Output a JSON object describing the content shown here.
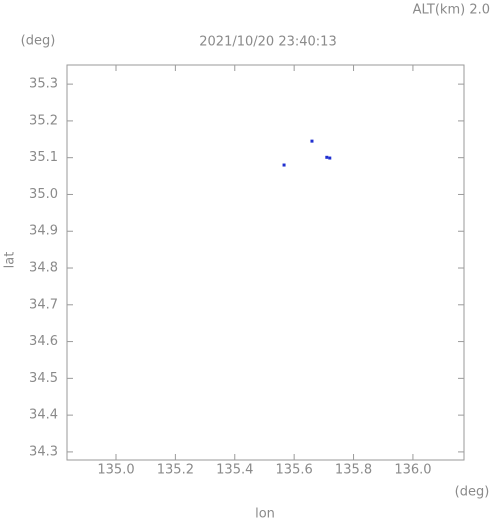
{
  "chart_data": {
    "type": "scatter",
    "title": "2021/10/20 23:40:13",
    "altitude_label": "ALT(km) 2.0",
    "y_unit": "(deg)",
    "x_unit": "(deg)",
    "xlabel": "lon",
    "ylabel": "lat",
    "x": [
      135.566,
      135.66,
      135.71,
      135.72
    ],
    "y": [
      35.08,
      35.145,
      35.101,
      35.099
    ],
    "color": "#2030d0",
    "xlim": [
      134.835,
      136.172
    ],
    "ylim": [
      34.278,
      35.352
    ],
    "xticks": [
      {
        "value": 135.0,
        "label": "135.0"
      },
      135.2,
      135.4,
      135.6,
      135.8,
      {
        "value": 136.0,
        "label": "136.0"
      }
    ],
    "yticks": [
      34.3,
      34.4,
      34.5,
      34.6,
      34.7,
      34.8,
      34.9,
      {
        "value": 35.0,
        "label": "35.0"
      },
      35.1,
      35.2,
      35.3
    ]
  }
}
